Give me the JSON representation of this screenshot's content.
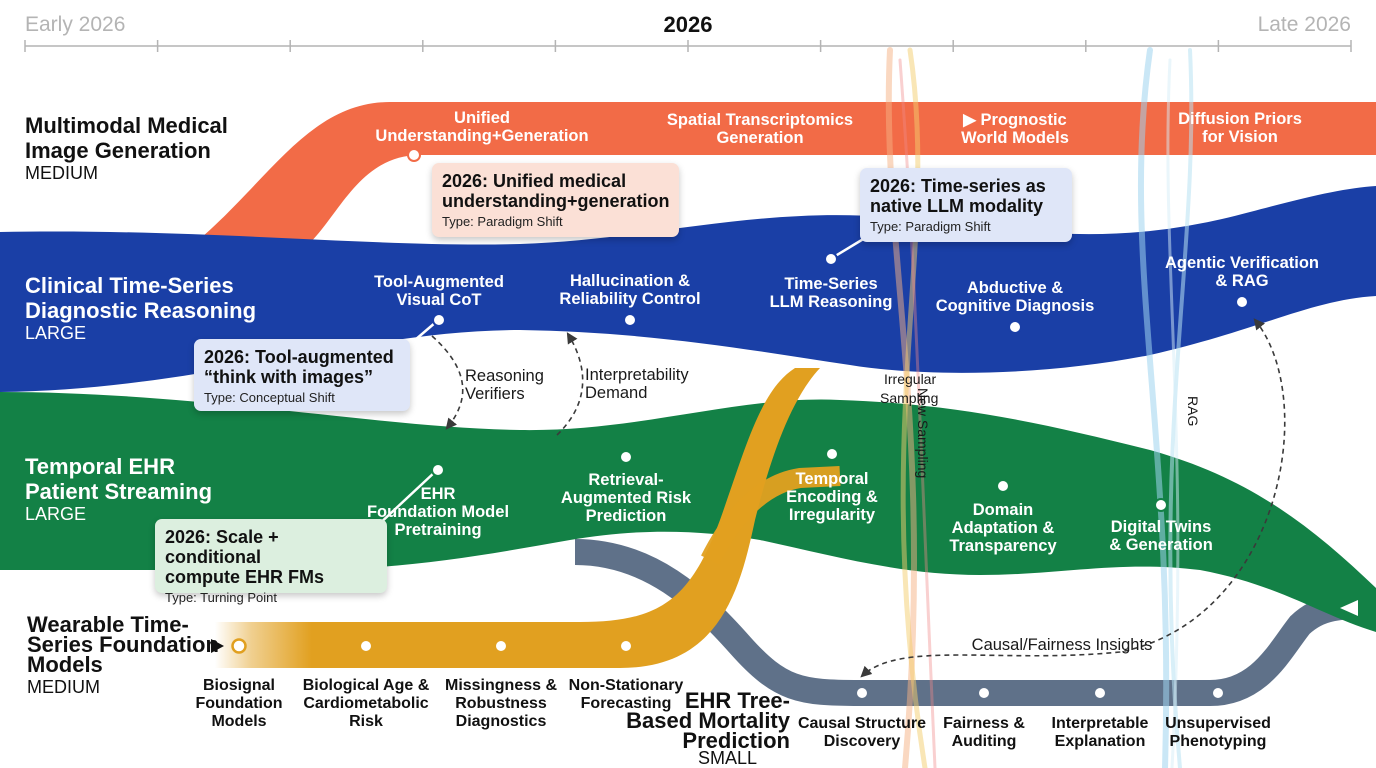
{
  "timeline": {
    "start_label": "Early 2026",
    "center_label": "2026",
    "end_label": "Late 2026"
  },
  "lanes": [
    {
      "id": "mmig",
      "title_lines": [
        "Multimodal Medical",
        "Image Generation"
      ],
      "size": "MEDIUM",
      "color": "#f26b47"
    },
    {
      "id": "ctsdr",
      "title_lines": [
        "Clinical Time-Series",
        "Diagnostic Reasoning"
      ],
      "size": "LARGE",
      "color": "#1a3fa6"
    },
    {
      "id": "tehr",
      "title_lines": [
        "Temporal EHR",
        "Patient Streaming"
      ],
      "size": "LARGE",
      "color": "#138146"
    },
    {
      "id": "wtsfm",
      "title_lines": [
        "Wearable Time-",
        "Series Foundation",
        "Models"
      ],
      "size": "MEDIUM",
      "color": "#e1a020"
    },
    {
      "id": "ehrtree",
      "title_lines": [
        "EHR Tree-",
        "Based Mortality",
        "Prediction"
      ],
      "size": "SMALL",
      "color": "#5f7189"
    }
  ],
  "milestones": {
    "mmig": [
      {
        "lines": [
          "Unified",
          "Understanding+Generation"
        ]
      },
      {
        "lines": [
          "Spatial Transcriptomics",
          "Generation"
        ]
      },
      {
        "lines": [
          "▶ Prognostic",
          "World Models"
        ]
      },
      {
        "lines": [
          "Diffusion Priors",
          "for Vision"
        ]
      }
    ],
    "ctsdr": [
      {
        "lines": [
          "Tool-Augmented",
          "Visual CoT"
        ]
      },
      {
        "lines": [
          "Hallucination &",
          "Reliability Control"
        ]
      },
      {
        "lines": [
          "Time-Series",
          "LLM Reasoning"
        ]
      },
      {
        "lines": [
          "Abductive &",
          "Cognitive Diagnosis"
        ]
      },
      {
        "lines": [
          "Agentic Verification",
          "& RAG"
        ]
      }
    ],
    "tehr": [
      {
        "lines": [
          "EHR",
          "Foundation Model",
          "Pretraining"
        ]
      },
      {
        "lines": [
          "Retrieval-",
          "Augmented Risk",
          "Prediction"
        ]
      },
      {
        "lines": [
          "Temporal",
          "Encoding &",
          "Irregularity"
        ]
      },
      {
        "lines": [
          "Domain",
          "Adaptation &",
          "Transparency"
        ]
      },
      {
        "lines": [
          "Digital Twins",
          "& Generation"
        ]
      }
    ],
    "wtsfm": [
      {
        "lines": [
          "Biosignal",
          "Foundation",
          "Models"
        ]
      },
      {
        "lines": [
          "Biological Age &",
          "Cardiometabolic",
          "Risk"
        ]
      },
      {
        "lines": [
          "Missingness &",
          "Robustness",
          "Diagnostics"
        ]
      },
      {
        "lines": [
          "Non-Stationary",
          "Forecasting"
        ]
      }
    ],
    "ehrtree": [
      {
        "lines": [
          "Causal Structure",
          "Discovery"
        ]
      },
      {
        "lines": [
          "Fairness &",
          "Auditing"
        ]
      },
      {
        "lines": [
          "Interpretable",
          "Explanation"
        ]
      },
      {
        "lines": [
          "Unsupervised",
          "Phenotyping"
        ]
      }
    ]
  },
  "callouts": [
    {
      "id": "c1",
      "title_lines": [
        "2026: Unified medical",
        "understanding+generation"
      ],
      "type": "Type: Paradigm Shift",
      "bg": "#fbe0d6"
    },
    {
      "id": "c2",
      "title_lines": [
        "2026: Time-series as",
        "native LLM modality"
      ],
      "type": "Type: Paradigm Shift",
      "bg": "#dfe6f8"
    },
    {
      "id": "c3",
      "title_lines": [
        "2026: Tool-augmented",
        "“think with images”"
      ],
      "type": "Type: Conceptual Shift",
      "bg": "#dfe6f8"
    },
    {
      "id": "c4",
      "title_lines": [
        "2026: Scale + conditional",
        "compute EHR FMs"
      ],
      "type": "Type: Turning Point",
      "bg": "#dcefdf"
    }
  ],
  "flows": {
    "reasoning_verifiers": [
      "Reasoning",
      "Verifiers"
    ],
    "interpretability_demand": [
      "Interpretability",
      "Demand"
    ],
    "irregular_sampling": [
      "Irregular",
      "Sampling"
    ],
    "new_sampling": "New Sampling",
    "rag": "RAG",
    "causal_fairness": "Causal/Fairness Insights"
  }
}
